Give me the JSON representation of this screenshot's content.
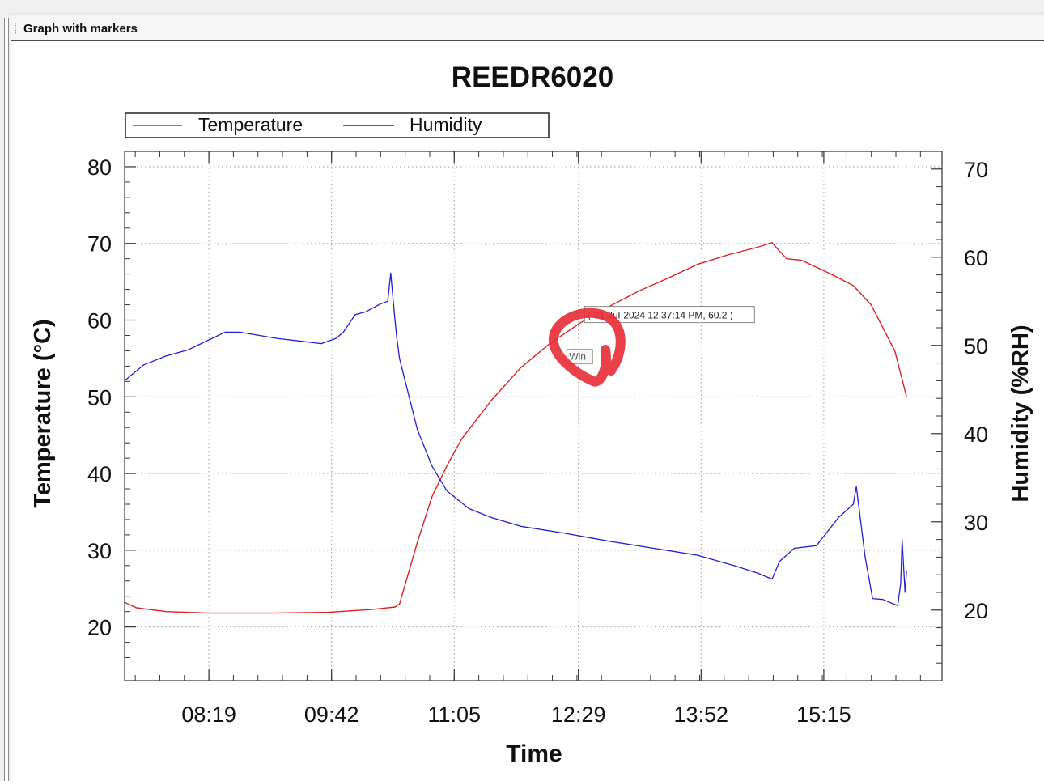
{
  "panel": {
    "title": "Graph with markers"
  },
  "chart_data": {
    "type": "line",
    "title": "REEDR6020",
    "xlabel": "Time",
    "ylabel_left": "Temperature (°C)",
    "ylabel_right": "Humidity (%RH)",
    "x_ticks": [
      "08:19",
      "09:42",
      "11:05",
      "12:29",
      "13:52",
      "15:15"
    ],
    "x_tick_minutes": [
      499,
      582,
      665,
      749,
      832,
      915
    ],
    "xlim_minutes": [
      442,
      995
    ],
    "y_left_ticks": [
      20,
      30,
      40,
      50,
      60,
      70,
      80
    ],
    "ylim_left": [
      13,
      82
    ],
    "y_right_ticks": [
      20,
      30,
      40,
      50,
      60,
      70
    ],
    "ylim_right": [
      12,
      72
    ],
    "grid": true,
    "legend": {
      "placement": "top-left",
      "entries": [
        "Temperature",
        "Humidity"
      ]
    },
    "series": [
      {
        "name": "Temperature",
        "axis": "left",
        "color": "#e02020",
        "x_minutes": [
          442,
          450,
          470,
          500,
          540,
          580,
          610,
          625,
          628,
          640,
          650,
          660,
          670,
          690,
          710,
          730,
          750,
          770,
          790,
          810,
          830,
          850,
          870,
          880,
          885,
          890,
          900,
          920,
          935,
          947,
          963,
          971
        ],
        "values": [
          23.2,
          22.5,
          22.0,
          21.8,
          21.8,
          21.9,
          22.3,
          22.6,
          23.0,
          31.0,
          37.0,
          41.0,
          44.5,
          49.5,
          53.8,
          57.0,
          59.6,
          61.8,
          63.8,
          65.5,
          67.3,
          68.5,
          69.5,
          70.1,
          69.0,
          68.0,
          67.8,
          66.0,
          64.5,
          62.0,
          56.0,
          50.0
        ]
      },
      {
        "name": "Humidity",
        "axis": "right",
        "color": "#2020d0",
        "x_minutes": [
          442,
          455,
          470,
          485,
          495,
          510,
          520,
          545,
          560,
          575,
          585,
          590,
          598,
          605,
          615,
          620,
          622,
          624,
          626,
          628,
          640,
          650,
          660,
          675,
          690,
          710,
          740,
          770,
          800,
          830,
          855,
          870,
          880,
          885,
          895,
          910,
          925,
          935,
          937,
          943,
          948,
          955,
          965,
          967,
          968,
          970,
          971
        ],
        "values": [
          46.0,
          47.8,
          48.8,
          49.5,
          50.3,
          51.5,
          51.5,
          50.8,
          50.5,
          50.2,
          50.8,
          51.5,
          53.5,
          53.8,
          54.7,
          55.0,
          58.2,
          54.5,
          51.0,
          48.5,
          40.5,
          36.3,
          33.5,
          31.5,
          30.5,
          29.5,
          28.7,
          27.8,
          27.0,
          26.2,
          25.0,
          24.2,
          23.5,
          25.5,
          27.0,
          27.3,
          30.5,
          32.0,
          34.0,
          26.0,
          21.3,
          21.2,
          20.5,
          23.0,
          28.0,
          22.0,
          24.5
        ]
      }
    ],
    "annotation": {
      "text": "( 31-Jul-2024 12:37:14 PM, 60.2 )",
      "x_minutes": 757,
      "y_left": 60.2
    },
    "overlay_tooltip": {
      "text": "Win"
    },
    "overlay_mark": {
      "color": "#e8303a",
      "description": "red hand-drawn circle around the marker"
    }
  }
}
